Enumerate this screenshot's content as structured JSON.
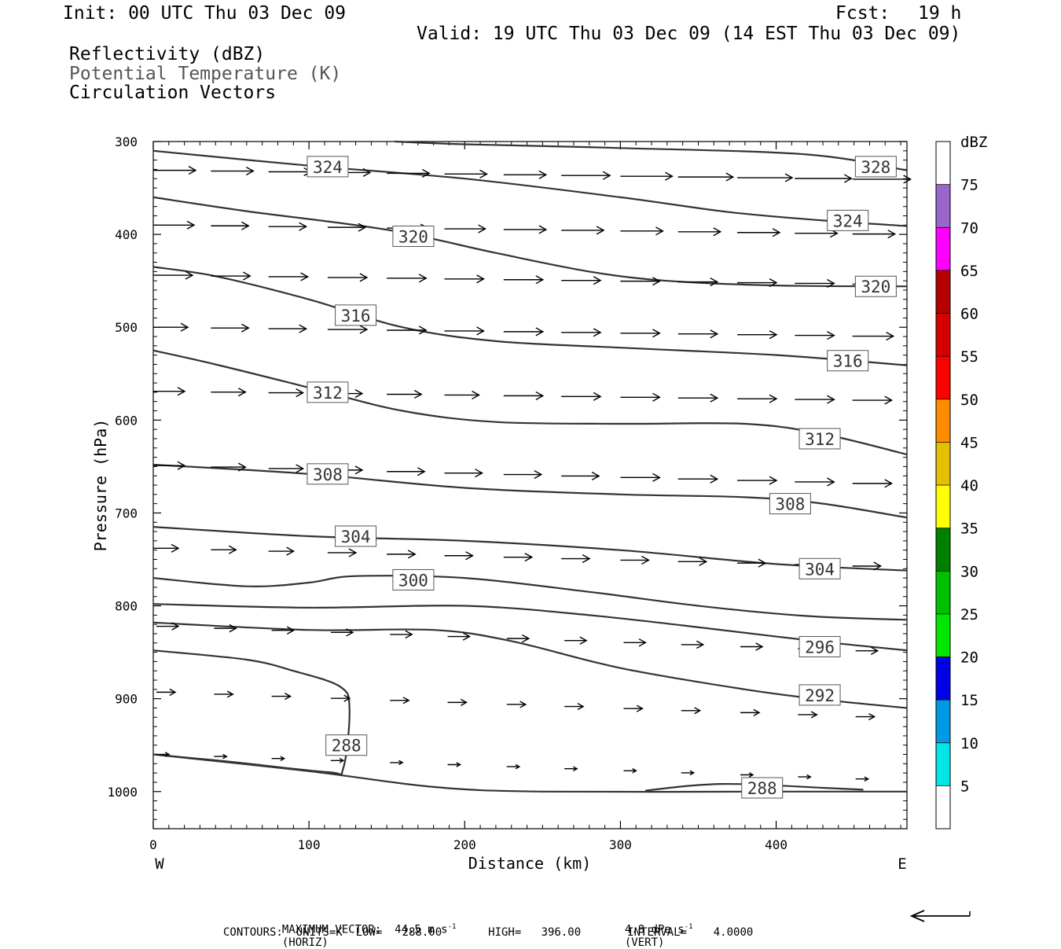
{
  "header": {
    "init": "Init: 00 UTC Thu 03 Dec 09",
    "fcst_label": "Fcst:",
    "fcst_value": "19 h",
    "valid": "Valid: 19 UTC Thu 03 Dec 09 (14 EST Thu 03 Dec 09)",
    "fields": [
      "Reflectivity (dBZ)",
      "Potential Temperature (K)",
      "Circulation Vectors"
    ]
  },
  "chart_data": {
    "type": "line",
    "subtype": "vertical cross-section (contours + vectors)",
    "xlabel": "Distance (km)",
    "ylabel": "Pressure (hPa)",
    "xlim": [
      0,
      484
    ],
    "ylim": [
      1040,
      300
    ],
    "x_ticks": [
      0,
      100,
      200,
      300,
      400
    ],
    "y_ticks": [
      300,
      400,
      500,
      600,
      700,
      800,
      900,
      1000
    ],
    "x_end_labels": {
      "left": "W",
      "right": "E"
    },
    "contours": [
      {
        "level": "328",
        "points": [
          [
            155,
            300
          ],
          [
            200,
            303
          ],
          [
            300,
            307
          ],
          [
            420,
            314
          ],
          [
            484,
            331
          ]
        ],
        "labels": [
          [
            464,
            327
          ]
        ]
      },
      {
        "level": "324",
        "points": [
          [
            0,
            310
          ],
          [
            100,
            326
          ],
          [
            200,
            340
          ],
          [
            300,
            360
          ],
          [
            370,
            376
          ],
          [
            430,
            385
          ],
          [
            484,
            391
          ]
        ],
        "labels": [
          [
            112,
            327
          ],
          [
            446,
            385
          ]
        ]
      },
      {
        "level": "320",
        "points": [
          [
            0,
            360
          ],
          [
            60,
            375
          ],
          [
            150,
            395
          ],
          [
            220,
            420
          ],
          [
            280,
            440
          ],
          [
            330,
            450
          ],
          [
            400,
            455
          ],
          [
            484,
            456
          ]
        ],
        "labels": [
          [
            167,
            402
          ],
          [
            464,
            456
          ]
        ]
      },
      {
        "level": "316",
        "points": [
          [
            0,
            435
          ],
          [
            40,
            445
          ],
          [
            100,
            470
          ],
          [
            160,
            500
          ],
          [
            220,
            515
          ],
          [
            300,
            522
          ],
          [
            400,
            530
          ],
          [
            484,
            541
          ]
        ],
        "labels": [
          [
            130,
            487
          ],
          [
            446,
            536
          ]
        ]
      },
      {
        "level": "312",
        "points": [
          [
            0,
            525
          ],
          [
            40,
            540
          ],
          [
            100,
            565
          ],
          [
            160,
            590
          ],
          [
            220,
            602
          ],
          [
            300,
            604
          ],
          [
            380,
            604
          ],
          [
            430,
            615
          ],
          [
            484,
            637
          ]
        ],
        "labels": [
          [
            112,
            570
          ],
          [
            428,
            620
          ]
        ]
      },
      {
        "level": "308",
        "points": [
          [
            0,
            648
          ],
          [
            100,
            658
          ],
          [
            200,
            673
          ],
          [
            300,
            680
          ],
          [
            380,
            683
          ],
          [
            430,
            690
          ],
          [
            484,
            705
          ]
        ],
        "labels": [
          [
            112,
            658
          ],
          [
            409,
            690
          ]
        ]
      },
      {
        "level": "304",
        "points": [
          [
            0,
            715
          ],
          [
            100,
            725
          ],
          [
            200,
            730
          ],
          [
            300,
            740
          ],
          [
            400,
            755
          ],
          [
            484,
            762
          ]
        ],
        "labels": [
          [
            130,
            725
          ],
          [
            428,
            760
          ]
        ]
      },
      {
        "level": "300",
        "points": [
          [
            0,
            770
          ],
          [
            60,
            779
          ],
          [
            100,
            775
          ],
          [
            130,
            768
          ],
          [
            200,
            770
          ],
          [
            280,
            785
          ],
          [
            350,
            800
          ],
          [
            420,
            811
          ],
          [
            484,
            815
          ]
        ],
        "labels": [
          [
            167,
            772
          ]
        ]
      },
      {
        "level": "296",
        "points": [
          [
            0,
            798
          ],
          [
            100,
            802
          ],
          [
            200,
            800
          ],
          [
            280,
            810
          ],
          [
            360,
            825
          ],
          [
            420,
            837
          ],
          [
            484,
            848
          ]
        ],
        "labels": [
          [
            428,
            844
          ]
        ]
      },
      {
        "level": "292",
        "points": [
          [
            0,
            818
          ],
          [
            100,
            826
          ],
          [
            180,
            826
          ],
          [
            230,
            838
          ],
          [
            300,
            867
          ],
          [
            380,
            890
          ],
          [
            430,
            901
          ],
          [
            484,
            910
          ]
        ],
        "labels": [
          [
            428,
            896
          ]
        ]
      },
      {
        "level": "288",
        "points": [
          [
            0,
            848
          ],
          [
            60,
            858
          ],
          [
            90,
            870
          ],
          [
            120,
            887
          ],
          [
            126,
            911
          ],
          [
            122,
            975
          ],
          [
            112,
            979
          ],
          [
            50,
            968
          ],
          [
            0,
            960
          ]
        ],
        "labels": [
          [
            124,
            950
          ]
        ]
      },
      {
        "level": "288",
        "points": [
          [
            0,
            960
          ],
          [
            100,
            978
          ],
          [
            180,
            995
          ],
          [
            250,
            1000
          ],
          [
            400,
            1000
          ],
          [
            484,
            1000
          ]
        ],
        "labels": []
      },
      {
        "level": "288",
        "points": [
          [
            316,
            999
          ],
          [
            350,
            993
          ],
          [
            380,
            992
          ],
          [
            430,
            996
          ],
          [
            456,
            998
          ]
        ],
        "labels": [
          [
            391,
            996
          ]
        ]
      }
    ],
    "colorbar": {
      "label": "dBZ",
      "ticks": [
        "5",
        "10",
        "15",
        "20",
        "25",
        "30",
        "35",
        "40",
        "45",
        "50",
        "55",
        "60",
        "65",
        "70",
        "75"
      ],
      "colors": [
        "#ffffff",
        "#00e6e6",
        "#0099e6",
        "#0000e6",
        "#00e600",
        "#00c000",
        "#008000",
        "#ffff00",
        "#e6c000",
        "#ff8c00",
        "#ff0000",
        "#d60000",
        "#b40000",
        "#ff00ff",
        "#9966cc",
        "#ffffff"
      ]
    },
    "vector_units": {
      "u": "44.5 m s-1",
      "omega": "4.8 dPa s-1"
    },
    "vectors_note": "wind arrows point eastward at every level",
    "contour_stats": {
      "units": "K",
      "low": "288.00",
      "high": "396.00",
      "interval": "4.0000"
    }
  },
  "footer": {
    "max_vector": "MAXIMUM VECTOR:  44.5 m s",
    "sup": "-1",
    "horiz": "(HORIZ)",
    "vert": "4.8 dPa s",
    "vert_tail": "(VERT)",
    "contours_line": "CONTOURS:  UNITS=K  LOW=   288.00       HIGH=   396.00       INTERVAL=    4.0000"
  }
}
